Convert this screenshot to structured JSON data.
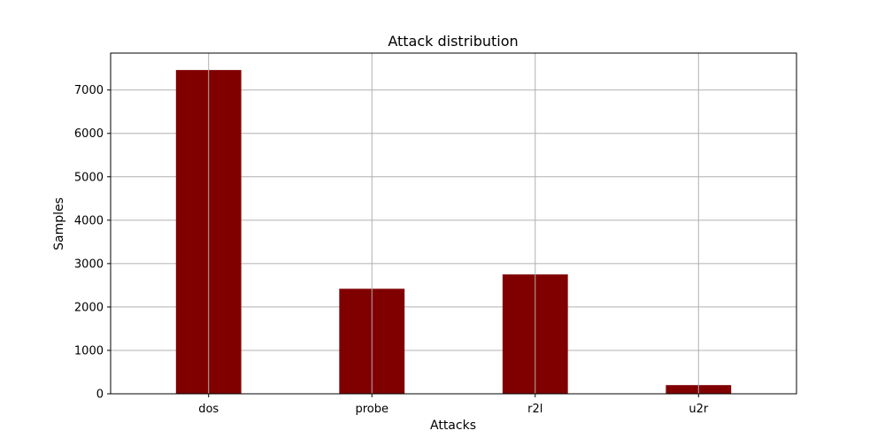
{
  "chart_data": {
    "type": "bar",
    "title": "Attack distribution",
    "xlabel": "Attacks",
    "ylabel": "Samples",
    "categories": [
      "dos",
      "probe",
      "r2l",
      "u2r"
    ],
    "values": [
      7460,
      2420,
      2750,
      200
    ],
    "ylim": [
      0,
      7850
    ],
    "yticks": [
      0,
      1000,
      2000,
      3000,
      4000,
      5000,
      6000,
      7000
    ],
    "grid": true,
    "bar_color": "#800000",
    "grid_color": "#b0b0b0"
  }
}
